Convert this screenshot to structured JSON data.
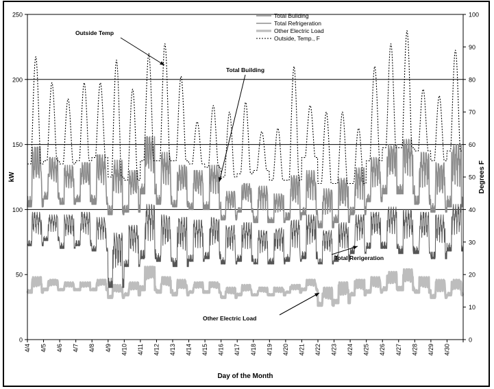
{
  "chart_data": {
    "type": "line",
    "title": "",
    "xlabel": "Day of the Month",
    "ylabel": "kW",
    "y2label": "Degrees F",
    "ylim": [
      0,
      250
    ],
    "y2lim": [
      0,
      100
    ],
    "yticks": [
      0,
      50,
      100,
      150,
      200,
      250
    ],
    "y2ticks": [
      0,
      10,
      20,
      30,
      40,
      50,
      60,
      70,
      80,
      90,
      100
    ],
    "grid_y": [
      100,
      150,
      200
    ],
    "categories": [
      "4/4",
      "4/5",
      "4/6",
      "4/7",
      "4/8",
      "4/9",
      "4/10",
      "4/11",
      "4/12",
      "4/13",
      "4/14",
      "4/15",
      "4/16",
      "4/17",
      "4/18",
      "4/19",
      "4/20",
      "4/21",
      "4/22",
      "4/23",
      "4/24",
      "4/25",
      "4/26",
      "4/27",
      "4/28",
      "4/29",
      "4/30"
    ],
    "legend_position": "top-right",
    "series": [
      {
        "name": "Total Building",
        "axis": "left",
        "color": "#8c8c8c",
        "daily_min": [
          102,
          108,
          104,
          106,
          104,
          96,
          98,
          112,
          104,
          102,
          100,
          100,
          92,
          98,
          90,
          90,
          92,
          96,
          86,
          90,
          96,
          106,
          112,
          112,
          104,
          98,
          102
        ],
        "daily_max": [
          148,
          140,
          134,
          136,
          142,
          138,
          130,
          156,
          144,
          134,
          130,
          134,
          114,
          120,
          118,
          112,
          126,
          130,
          116,
          124,
          132,
          140,
          150,
          154,
          144,
          136,
          150
        ]
      },
      {
        "name": "Total Refrigeration",
        "axis": "left",
        "color": "#555555",
        "daily_min": [
          72,
          76,
          70,
          72,
          68,
          40,
          56,
          62,
          60,
          56,
          60,
          62,
          58,
          60,
          58,
          58,
          60,
          62,
          58,
          60,
          66,
          70,
          70,
          66,
          66,
          62,
          68
        ],
        "daily_max": [
          98,
          96,
          96,
          98,
          94,
          82,
          88,
          104,
          96,
          94,
          92,
          94,
          88,
          90,
          84,
          86,
          92,
          96,
          84,
          90,
          96,
          98,
          102,
          100,
          98,
          96,
          104
        ]
      },
      {
        "name": "Other Electric Load",
        "axis": "left",
        "color": "#bdbdbd",
        "daily_min": [
          36,
          38,
          38,
          38,
          38,
          32,
          34,
          38,
          36,
          34,
          36,
          36,
          32,
          34,
          34,
          34,
          36,
          38,
          26,
          28,
          34,
          36,
          38,
          38,
          36,
          32,
          34
        ],
        "daily_max": [
          48,
          46,
          44,
          44,
          46,
          42,
          44,
          56,
          48,
          46,
          44,
          44,
          40,
          42,
          40,
          40,
          42,
          46,
          40,
          44,
          46,
          48,
          52,
          54,
          48,
          46,
          46
        ]
      },
      {
        "name": "Outside, Temp., F",
        "axis": "right",
        "color": "#000000",
        "daily_min": [
          54,
          55,
          54,
          55,
          56,
          50,
          49,
          55,
          55,
          55,
          54,
          53,
          50,
          51,
          52,
          49,
          49,
          56,
          48,
          48,
          48,
          55,
          59,
          59,
          58,
          55,
          58
        ],
        "daily_max": [
          87,
          79,
          74,
          79,
          79,
          86,
          77,
          88,
          91,
          81,
          67,
          72,
          70,
          73,
          64,
          65,
          84,
          72,
          70,
          70,
          65,
          84,
          91,
          95,
          77,
          75,
          89
        ]
      }
    ],
    "annotations": [
      {
        "id": "outside_temp",
        "text": "Outside Temp"
      },
      {
        "id": "total_building",
        "text": "Total Building"
      },
      {
        "id": "total_refrigeration",
        "text": "Total Rerigeration"
      },
      {
        "id": "other_electric",
        "text": "Other Electric Load"
      }
    ]
  }
}
